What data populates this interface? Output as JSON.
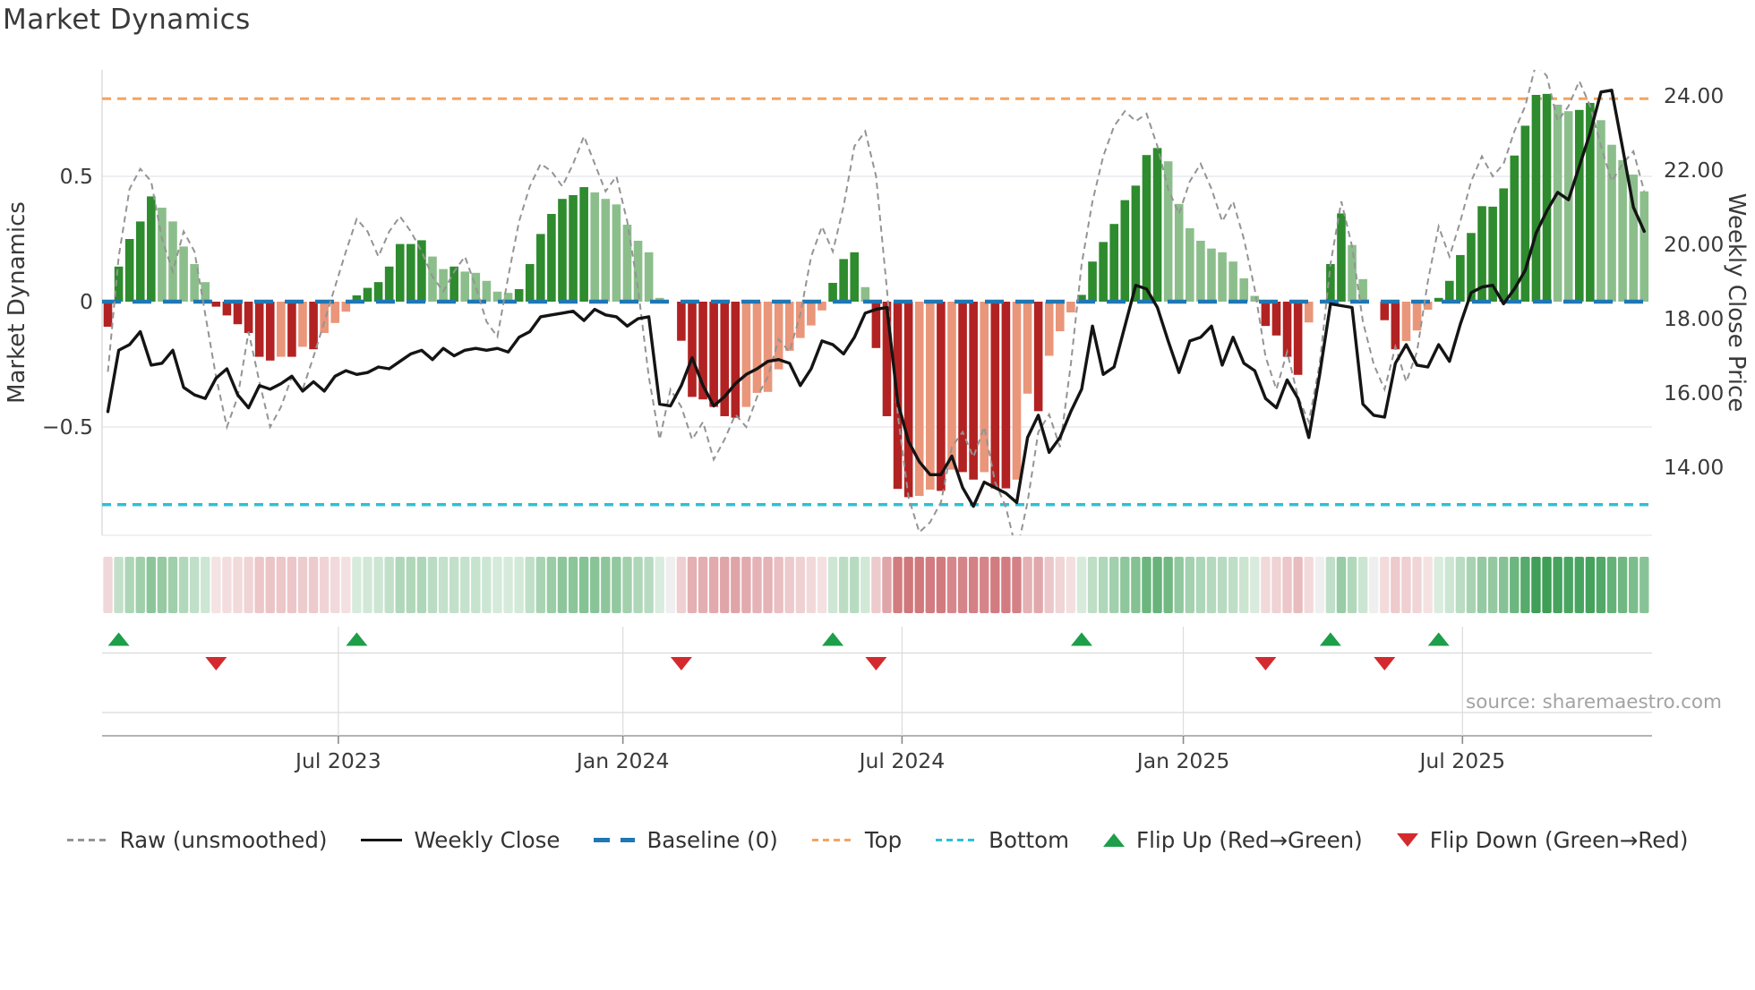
{
  "title": "Market Dynamics",
  "source_note": "source: sharemaestro.com",
  "axes": {
    "left_label": "Market Dynamics",
    "right_label": "Weekly Close Price",
    "left_tick_labels": [
      "0.5",
      "0",
      "−0.5"
    ],
    "right_tick_labels": [
      "24.00",
      "22.00",
      "20.00",
      "18.00",
      "16.00",
      "14.00"
    ],
    "x_tick_labels": [
      "Jul 2023",
      "Jan 2024",
      "Jul 2024",
      "Jan 2025",
      "Jul 2025"
    ]
  },
  "legend": {
    "items": [
      {
        "key": "raw",
        "label": "Raw (unsmoothed)"
      },
      {
        "key": "close",
        "label": "Weekly Close"
      },
      {
        "key": "baseline",
        "label": "Baseline (0)"
      },
      {
        "key": "top",
        "label": "Top"
      },
      {
        "key": "bottom",
        "label": "Bottom"
      },
      {
        "key": "flipup",
        "label": "Flip Up (Red→Green)"
      },
      {
        "key": "flipdown",
        "label": "Flip Down (Green→Red)"
      }
    ]
  },
  "palette": {
    "bar_up_strong": "#2e8b2e",
    "bar_up_weak": "#8cbe8c",
    "bar_down_strong": "#b22222",
    "bar_down_weak": "#e9967a",
    "baseline_blue": "#1f77b4",
    "top_orange": "#f4a460",
    "bottom_cyan": "#2ec0d4",
    "raw_gray": "#949494",
    "price_black": "#141414",
    "flip_up_green": "#1d9e49",
    "flip_down_red": "#d42a2e",
    "grid": "#e7eaee",
    "tick_text": "#3a3a3a"
  },
  "chart_data": {
    "type": "mixed-bar-line",
    "x_unit": "week",
    "n_weeks": 143,
    "title": "Market Dynamics",
    "left_axis": {
      "label": "Market Dynamics",
      "ticks": [
        0.5,
        0,
        -0.5
      ],
      "approx_range": [
        -0.93,
        0.93
      ]
    },
    "right_axis": {
      "label": "Weekly Close Price",
      "ticks": [
        24,
        22,
        20,
        18,
        16,
        14
      ]
    },
    "x_ticks": [
      {
        "label": "Jul 2023",
        "week": 21.3
      },
      {
        "label": "Jan 2024",
        "week": 47.6
      },
      {
        "label": "Jul 2024",
        "week": 73.4
      },
      {
        "label": "Jan 2025",
        "week": 99.4
      },
      {
        "label": "Jul 2025",
        "week": 125.2
      }
    ],
    "baseline": 0,
    "top_line": 0.81,
    "bottom_line": -0.81,
    "oscillator": [
      -0.1,
      0.14,
      0.25,
      0.32,
      0.42,
      0.375,
      0.32,
      0.22,
      0.15,
      0.078,
      -0.02,
      -0.055,
      -0.09,
      -0.125,
      -0.22,
      -0.235,
      -0.22,
      -0.22,
      -0.18,
      -0.19,
      -0.125,
      -0.085,
      -0.04,
      0.025,
      0.055,
      0.078,
      0.14,
      0.23,
      0.23,
      0.245,
      0.18,
      0.13,
      0.14,
      0.12,
      0.115,
      0.083,
      0.04,
      0.035,
      0.05,
      0.15,
      0.27,
      0.35,
      0.41,
      0.425,
      0.457,
      0.436,
      0.41,
      0.388,
      0.307,
      0.243,
      0.197,
      0.015,
      0.0,
      -0.156,
      -0.38,
      -0.39,
      -0.42,
      -0.457,
      -0.463,
      -0.42,
      -0.364,
      -0.36,
      -0.27,
      -0.196,
      -0.145,
      -0.095,
      -0.035,
      0.075,
      0.17,
      0.197,
      0.058,
      -0.185,
      -0.457,
      -0.747,
      -0.78,
      -0.775,
      -0.75,
      -0.755,
      -0.67,
      -0.68,
      -0.71,
      -0.68,
      -0.745,
      -0.745,
      -0.71,
      -0.367,
      -0.437,
      -0.216,
      -0.118,
      -0.043,
      0.027,
      0.16,
      0.238,
      0.31,
      0.405,
      0.463,
      0.585,
      0.613,
      0.56,
      0.39,
      0.293,
      0.243,
      0.212,
      0.197,
      0.16,
      0.093,
      0.023,
      -0.097,
      -0.135,
      -0.22,
      -0.292,
      -0.083,
      0.0,
      0.15,
      0.352,
      0.226,
      0.09,
      0.0,
      -0.074,
      -0.19,
      -0.157,
      -0.115,
      -0.032,
      0.015,
      0.083,
      0.186,
      0.274,
      0.381,
      0.379,
      0.452,
      0.583,
      0.702,
      0.825,
      0.829,
      0.786,
      0.76,
      0.765,
      0.793,
      0.724,
      0.626,
      0.565,
      0.507,
      0.44
    ],
    "raw": [
      -0.28,
      0.18,
      0.45,
      0.53,
      0.48,
      0.25,
      0.12,
      0.28,
      0.2,
      -0.05,
      -0.3,
      -0.5,
      -0.38,
      -0.12,
      -0.32,
      -0.5,
      -0.42,
      -0.3,
      -0.35,
      -0.22,
      -0.08,
      0.06,
      0.2,
      0.33,
      0.28,
      0.18,
      0.28,
      0.34,
      0.28,
      0.2,
      0.1,
      0.04,
      0.12,
      0.18,
      0.06,
      -0.08,
      -0.14,
      0.1,
      0.32,
      0.46,
      0.55,
      0.52,
      0.46,
      0.55,
      0.66,
      0.55,
      0.44,
      0.5,
      0.32,
      0.05,
      -0.3,
      -0.55,
      -0.35,
      -0.42,
      -0.55,
      -0.48,
      -0.63,
      -0.55,
      -0.45,
      -0.5,
      -0.38,
      -0.3,
      -0.15,
      -0.2,
      -0.05,
      0.18,
      0.3,
      0.2,
      0.38,
      0.62,
      0.68,
      0.5,
      0.05,
      -0.45,
      -0.78,
      -0.92,
      -0.88,
      -0.8,
      -0.58,
      -0.52,
      -0.62,
      -0.5,
      -0.72,
      -0.82,
      -1.0,
      -0.8,
      -0.52,
      -0.45,
      -0.58,
      -0.25,
      0.15,
      0.4,
      0.58,
      0.7,
      0.76,
      0.72,
      0.75,
      0.62,
      0.45,
      0.35,
      0.48,
      0.55,
      0.45,
      0.32,
      0.4,
      0.25,
      0.05,
      -0.22,
      -0.35,
      -0.2,
      -0.38,
      -0.48,
      -0.25,
      0.15,
      0.4,
      0.22,
      -0.08,
      -0.25,
      -0.35,
      -0.18,
      -0.32,
      -0.2,
      0.08,
      0.3,
      0.18,
      0.32,
      0.48,
      0.58,
      0.5,
      0.55,
      0.68,
      0.78,
      0.95,
      0.9,
      0.72,
      0.78,
      0.88,
      0.78,
      0.62,
      0.48,
      0.55,
      0.6,
      0.44
    ],
    "price": [
      15.5,
      17.15,
      17.3,
      17.65,
      16.75,
      16.8,
      17.15,
      16.15,
      15.95,
      15.85,
      16.4,
      16.65,
      15.95,
      15.6,
      16.2,
      16.1,
      16.25,
      16.45,
      16.05,
      16.3,
      16.05,
      16.45,
      16.6,
      16.5,
      16.55,
      16.7,
      16.65,
      16.85,
      17.05,
      17.15,
      16.9,
      17.2,
      17.0,
      17.15,
      17.2,
      17.15,
      17.2,
      17.1,
      17.5,
      17.65,
      18.05,
      18.1,
      18.15,
      18.2,
      17.95,
      18.25,
      18.1,
      18.05,
      17.8,
      18.0,
      18.05,
      15.7,
      15.65,
      16.2,
      16.95,
      16.2,
      15.65,
      15.9,
      16.25,
      16.5,
      16.65,
      16.85,
      16.9,
      16.8,
      16.2,
      16.65,
      17.4,
      17.3,
      17.05,
      17.5,
      18.15,
      18.25,
      18.3,
      15.75,
      14.7,
      14.15,
      13.8,
      13.8,
      14.3,
      13.45,
      12.95,
      13.6,
      13.45,
      13.3,
      13.05,
      14.8,
      15.4,
      14.4,
      14.8,
      15.5,
      16.1,
      17.8,
      16.5,
      16.7,
      17.8,
      18.9,
      18.8,
      18.3,
      17.4,
      16.55,
      17.4,
      17.5,
      17.8,
      16.75,
      17.5,
      16.8,
      16.6,
      15.85,
      15.6,
      16.35,
      15.85,
      14.8,
      16.5,
      18.4,
      18.35,
      18.3,
      15.7,
      15.4,
      15.35,
      16.8,
      17.3,
      16.75,
      16.7,
      17.3,
      16.85,
      17.85,
      18.7,
      18.85,
      18.9,
      18.4,
      18.8,
      19.3,
      20.3,
      20.9,
      21.4,
      21.2,
      22.1,
      23.0,
      24.1,
      24.15,
      22.6,
      21.0,
      20.35
    ],
    "flip_up_weeks": [
      1,
      23,
      67,
      90,
      113,
      123
    ],
    "flip_down_weeks": [
      10,
      53,
      71,
      107,
      118
    ],
    "heat_strip": "diverging red-to-green cells mirroring oscillator values",
    "grid": "horizontal at left ticks ±0.5; vertical at month ticks in marker band",
    "legend_position": "bottom center"
  }
}
